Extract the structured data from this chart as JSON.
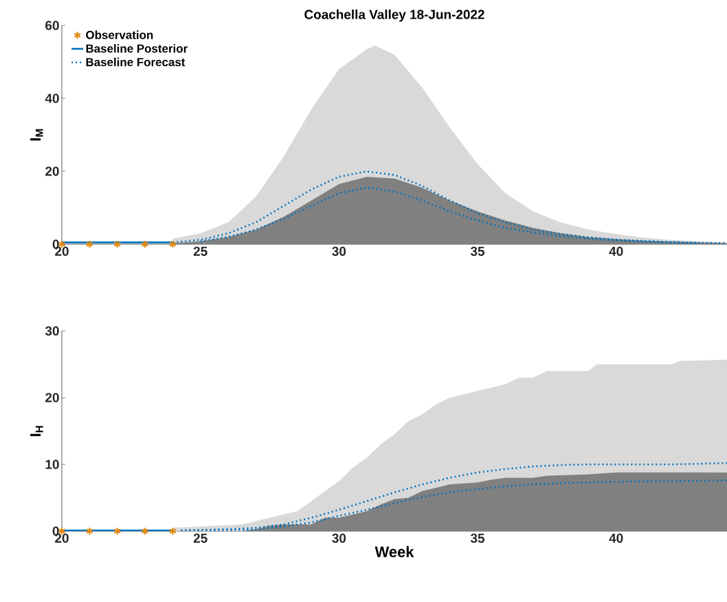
{
  "chart_data": [
    {
      "type": "line",
      "title": "Coachella Valley 18-Jun-2022",
      "ylabel": "I$_{M}$",
      "xlim": [
        20,
        44
      ],
      "xticks": [
        20,
        25,
        30,
        35,
        40
      ],
      "ylim": [
        0,
        60
      ],
      "yticks": [
        0,
        20,
        40,
        60
      ],
      "legend": "top left",
      "series": [
        {
          "type": "area",
          "color": "#d9d9d9",
          "x": [
            24,
            25,
            26,
            27,
            28,
            29,
            30,
            31,
            31.3,
            32,
            33,
            34,
            35,
            36,
            37,
            38,
            39,
            40,
            41,
            42,
            43,
            44
          ],
          "values": [
            1.5,
            3,
            6,
            13,
            24,
            37,
            48,
            53.5,
            54.5,
            52,
            43,
            32,
            22,
            14,
            9,
            6,
            4,
            2.8,
            1.8,
            1.2,
            0.8,
            0.5
          ]
        },
        {
          "type": "area",
          "color": "#808080",
          "x": [
            24,
            25,
            26,
            27,
            28,
            29,
            30,
            31,
            32,
            33,
            34,
            35,
            36,
            37,
            38,
            39,
            40,
            41,
            42,
            43,
            44
          ],
          "values": [
            0.3,
            0.8,
            2,
            4,
            7.5,
            12,
            16.5,
            18.5,
            18,
            15.5,
            12,
            9,
            6.5,
            4.5,
            3,
            2,
            1.4,
            1,
            0.7,
            0.5,
            0.3
          ]
        },
        {
          "name": "Baseline Forecast",
          "color": "#0072bd",
          "line_style": "dotted",
          "x": [
            24,
            25,
            26,
            27,
            28,
            29,
            30,
            31,
            32,
            33,
            34,
            35,
            36,
            37,
            38,
            39,
            40,
            41,
            42,
            43,
            44
          ],
          "values": [
            0.5,
            1.2,
            3,
            6,
            10.5,
            15,
            18.5,
            20,
            19,
            16,
            12,
            8.5,
            6,
            4,
            2.8,
            1.9,
            1.3,
            0.9,
            0.6,
            0.4,
            0.3
          ]
        },
        {
          "color": "#0072bd",
          "line_style": "dotted",
          "x": [
            25,
            26,
            27,
            28,
            29,
            30,
            31,
            32,
            33,
            34,
            35,
            36,
            37,
            38,
            39,
            40,
            41,
            42,
            43
          ],
          "values": [
            0.8,
            2,
            4,
            7,
            10.5,
            14,
            15.5,
            14.5,
            12,
            9,
            6.5,
            4.5,
            3.2,
            2.2,
            1.5,
            1,
            0.7,
            0.5,
            0.3
          ]
        },
        {
          "name": "Baseline Posterior",
          "color": "#0072bd",
          "line_style": "solid",
          "x": [
            20,
            21,
            22,
            23,
            24
          ],
          "values": [
            0.5,
            0.5,
            0.5,
            0.5,
            0.5
          ]
        },
        {
          "type": "scatter",
          "name": "Observation",
          "color": "#e38a12",
          "marker": "cross",
          "x": [
            20,
            21,
            22,
            23,
            24
          ],
          "values": [
            0,
            0,
            0,
            0,
            0
          ]
        }
      ]
    },
    {
      "type": "line",
      "xlabel": "Week",
      "ylabel": "I$_{H}$",
      "xlim": [
        20,
        44
      ],
      "xticks": [
        20,
        25,
        30,
        35,
        40
      ],
      "ylim": [
        0,
        30
      ],
      "yticks": [
        0,
        10,
        20,
        30
      ],
      "series": [
        {
          "type": "area",
          "color": "#d9d9d9",
          "x": [
            24,
            25,
            26,
            26.5,
            27,
            27.5,
            28,
            28.5,
            29,
            29.5,
            30,
            30.5,
            31,
            31.5,
            32,
            32.5,
            33,
            33.5,
            34,
            34.5,
            35,
            36,
            36.5,
            37,
            37.5,
            39,
            39.3,
            42,
            42.3,
            44
          ],
          "values": [
            0.5,
            0.7,
            0.9,
            1,
            1.5,
            2,
            2.5,
            3,
            4.5,
            6,
            7.5,
            9.5,
            11,
            13,
            14.5,
            16.5,
            17.5,
            19,
            20,
            20.5,
            21,
            22,
            23,
            23,
            24,
            24,
            25,
            25,
            25.5,
            25.7
          ]
        },
        {
          "type": "area",
          "color": "#808080",
          "x": [
            26.5,
            27,
            27.5,
            28,
            29,
            29.5,
            30,
            30.5,
            31,
            31.5,
            32,
            32.5,
            33,
            33.5,
            34,
            35,
            35.5,
            36,
            37,
            37.5,
            39,
            40,
            44
          ],
          "values": [
            0,
            0.3,
            0.8,
            1,
            1,
            2,
            2,
            2.5,
            3,
            4,
            4.8,
            5,
            6,
            6.5,
            7,
            7.3,
            7.7,
            8,
            8,
            8.3,
            8.5,
            8.8,
            8.8
          ]
        },
        {
          "color": "#0072bd",
          "line_style": "dotted",
          "x": [
            24.3,
            26,
            27,
            28,
            29,
            30,
            31,
            32,
            33,
            34,
            35,
            36,
            37,
            38,
            39,
            40,
            42,
            44
          ],
          "values": [
            0.1,
            0.3,
            0.5,
            1,
            2,
            3.2,
            4.5,
            5.8,
            7,
            8,
            8.8,
            9.3,
            9.7,
            9.9,
            10,
            10,
            10,
            10.2
          ]
        },
        {
          "color": "#0072bd",
          "line_style": "dotted",
          "x": [
            24.3,
            27,
            28,
            29,
            30,
            31,
            32,
            33,
            34,
            35,
            36,
            37,
            38,
            40,
            44
          ],
          "values": [
            0.1,
            0.2,
            0.7,
            1.3,
            2.3,
            3.2,
            4.2,
            5.1,
            5.8,
            6.3,
            6.7,
            7,
            7.2,
            7.4,
            7.6
          ]
        },
        {
          "color": "#0072bd",
          "line_style": "solid",
          "x": [
            20,
            21,
            22,
            23,
            24
          ],
          "values": [
            0.1,
            0.1,
            0.1,
            0.1,
            0.1
          ]
        },
        {
          "type": "scatter",
          "color": "#e38a12",
          "marker": "cross",
          "x": [
            20,
            21,
            22,
            23,
            24
          ],
          "values": [
            0,
            0,
            0,
            0,
            0
          ]
        }
      ]
    }
  ]
}
